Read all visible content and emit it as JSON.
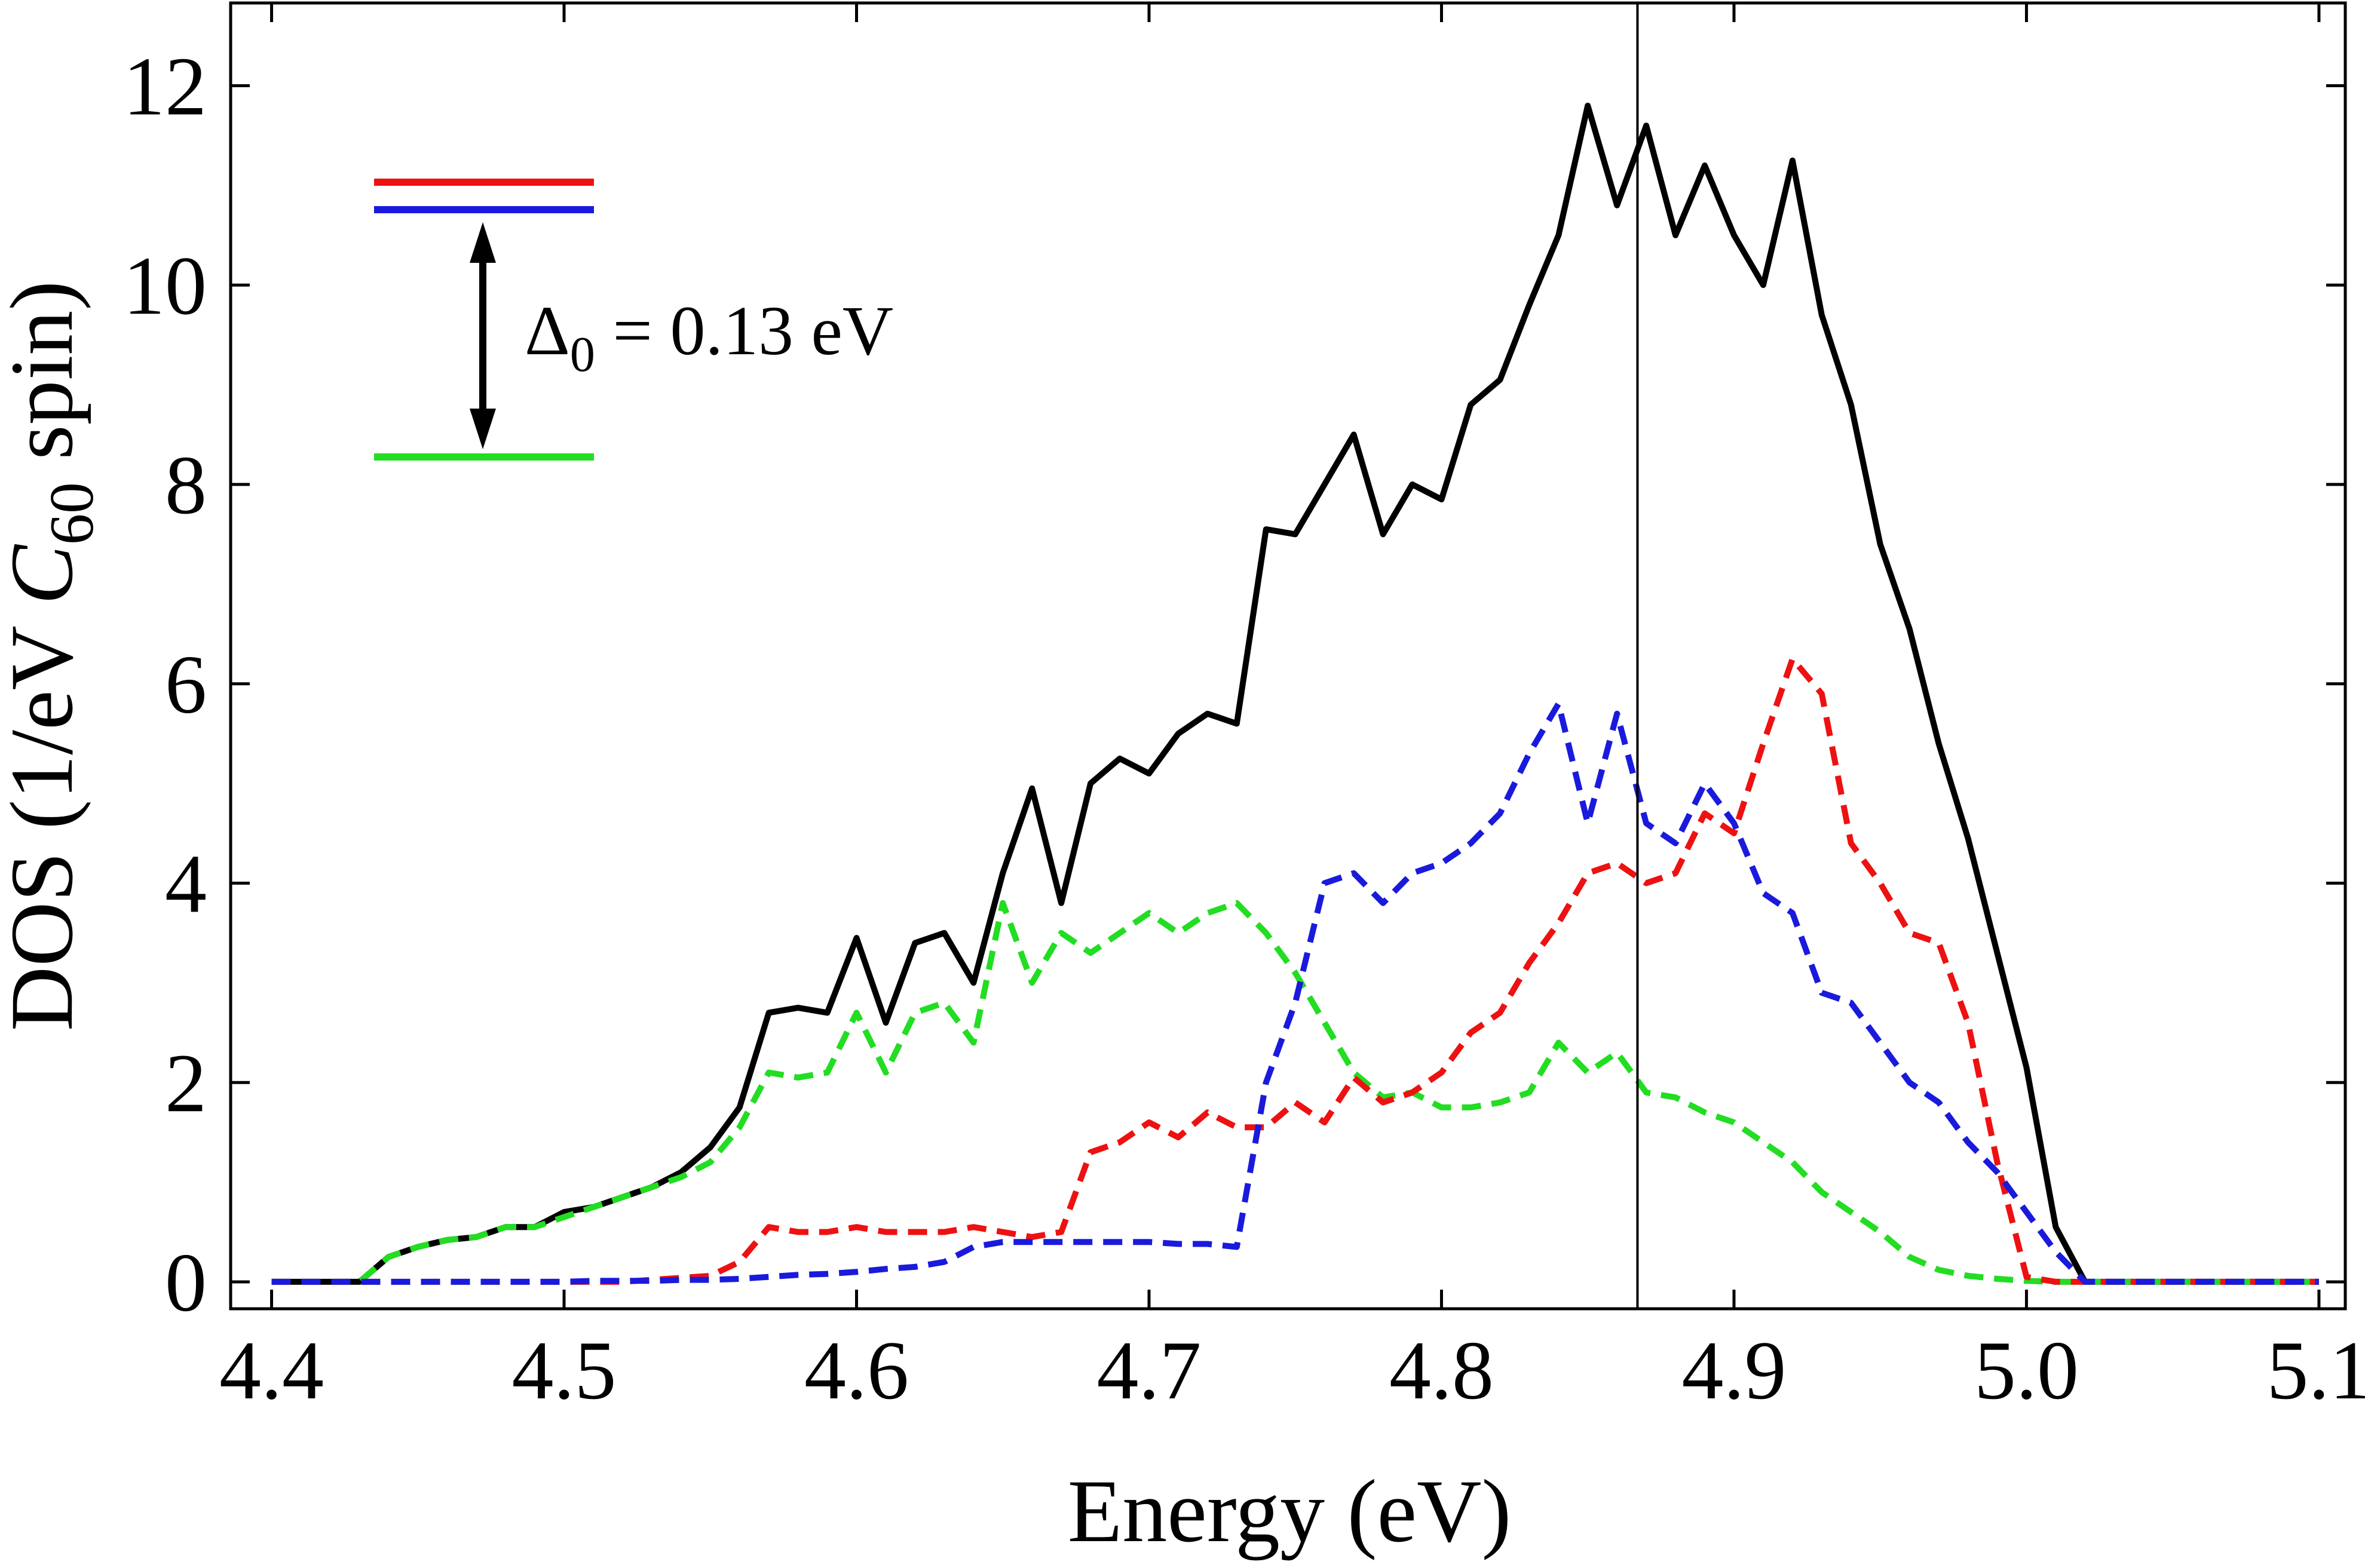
{
  "chart_data": {
    "type": "line",
    "xlabel": "Energy (eV)",
    "ylabel": {
      "text": "DOS (1/eV ",
      "italic": "C",
      "subscript": "60",
      "suffix": " spin)"
    },
    "annotation": {
      "symbol": "Δ",
      "subscript": "0",
      "text": " = 0.13 eV"
    },
    "vline": 4.867,
    "xlim": [
      4.386,
      5.109
    ],
    "ylim": [
      -0.27,
      12.83
    ],
    "xticks": [
      4.4,
      4.5,
      4.6,
      4.7,
      4.8,
      4.9,
      {
        "value": 5,
        "label": "5.0"
      },
      5.1
    ],
    "yticks": [
      0,
      2,
      4,
      6,
      8,
      10,
      12
    ],
    "x": [
      4.4,
      4.41,
      4.42,
      4.43,
      4.44,
      4.45,
      4.46,
      4.47,
      4.48,
      4.49,
      4.5,
      4.51,
      4.52,
      4.53,
      4.54,
      4.55,
      4.56,
      4.57,
      4.58,
      4.59,
      4.6,
      4.61,
      4.62,
      4.63,
      4.64,
      4.65,
      4.66,
      4.67,
      4.68,
      4.69,
      4.7,
      4.71,
      4.72,
      4.73,
      4.74,
      4.75,
      4.76,
      4.77,
      4.78,
      4.79,
      4.8,
      4.81,
      4.82,
      4.83,
      4.84,
      4.85,
      4.86,
      4.87,
      4.88,
      4.89,
      4.9,
      4.91,
      4.92,
      4.93,
      4.94,
      4.95,
      4.96,
      4.97,
      4.98,
      4.99,
      5.0,
      5.01,
      5.02,
      5.03,
      5.04,
      5.05,
      5.06,
      5.07,
      5.08,
      5.09,
      5.1
    ],
    "series": [
      {
        "color": "#000000",
        "dashed": false,
        "values": [
          0,
          0,
          0,
          0,
          0.25,
          0.35,
          0.42,
          0.45,
          0.55,
          0.55,
          0.7,
          0.75,
          0.85,
          0.95,
          1.1,
          1.35,
          1.75,
          2.7,
          2.75,
          2.7,
          3.45,
          2.6,
          3.4,
          3.5,
          3.0,
          4.1,
          4.95,
          3.8,
          5.0,
          5.25,
          5.1,
          5.5,
          5.7,
          5.6,
          7.55,
          7.5,
          8.0,
          8.5,
          7.5,
          8.0,
          7.85,
          8.8,
          9.05,
          9.8,
          10.5,
          11.8,
          10.8,
          11.6,
          10.5,
          11.2,
          10.5,
          10.0,
          11.25,
          9.7,
          8.8,
          7.4,
          6.55,
          5.4,
          4.45,
          3.3,
          2.15,
          0.55,
          0,
          0,
          0,
          0,
          0,
          0,
          0,
          0,
          0
        ]
      },
      {
        "color": "#22dd22",
        "dashed": true,
        "values": [
          0,
          0,
          0,
          0,
          0.25,
          0.35,
          0.42,
          0.45,
          0.55,
          0.55,
          0.65,
          0.75,
          0.85,
          0.95,
          1.05,
          1.2,
          1.55,
          2.1,
          2.05,
          2.1,
          2.7,
          2.1,
          2.7,
          2.8,
          2.4,
          3.8,
          3.0,
          3.5,
          3.3,
          3.5,
          3.7,
          3.5,
          3.7,
          3.8,
          3.5,
          3.1,
          2.6,
          2.1,
          1.85,
          1.9,
          1.75,
          1.75,
          1.8,
          1.9,
          2.4,
          2.1,
          2.3,
          1.9,
          1.85,
          1.7,
          1.6,
          1.4,
          1.2,
          0.9,
          0.7,
          0.5,
          0.25,
          0.12,
          0.06,
          0.03,
          0.01,
          0,
          0,
          0,
          0,
          0,
          0,
          0,
          0,
          0,
          0
        ]
      },
      {
        "color": "#ee1111",
        "dashed": true,
        "values": [
          0,
          0,
          0,
          0,
          0,
          0,
          0,
          0,
          0,
          0,
          0,
          0,
          0,
          0.02,
          0.04,
          0.06,
          0.2,
          0.55,
          0.5,
          0.5,
          0.55,
          0.5,
          0.5,
          0.5,
          0.55,
          0.5,
          0.45,
          0.5,
          1.3,
          1.4,
          1.6,
          1.45,
          1.7,
          1.55,
          1.55,
          1.8,
          1.6,
          2.05,
          1.8,
          1.9,
          2.1,
          2.5,
          2.7,
          3.2,
          3.6,
          4.1,
          4.2,
          4.0,
          4.1,
          4.7,
          4.5,
          5.4,
          6.25,
          5.9,
          4.4,
          4.0,
          3.5,
          3.4,
          2.6,
          1.2,
          0.05,
          0,
          0,
          0,
          0,
          0,
          0,
          0,
          0,
          0,
          0
        ]
      },
      {
        "color": "#1a1add",
        "dashed": true,
        "values": [
          0,
          0,
          0,
          0,
          0,
          0,
          0,
          0,
          0,
          0,
          0,
          0.01,
          0.01,
          0.01,
          0.02,
          0.02,
          0.03,
          0.05,
          0.07,
          0.08,
          0.1,
          0.13,
          0.15,
          0.2,
          0.35,
          0.4,
          0.4,
          0.4,
          0.4,
          0.4,
          0.4,
          0.38,
          0.38,
          0.35,
          2.0,
          2.8,
          4.0,
          4.1,
          3.8,
          4.1,
          4.2,
          4.4,
          4.7,
          5.3,
          5.8,
          4.6,
          5.7,
          4.6,
          4.4,
          5.0,
          4.6,
          3.9,
          3.7,
          2.9,
          2.8,
          2.4,
          2.0,
          1.8,
          1.4,
          1.1,
          0.7,
          0.3,
          0,
          0,
          0,
          0,
          0,
          0,
          0,
          0,
          0
        ]
      }
    ]
  }
}
